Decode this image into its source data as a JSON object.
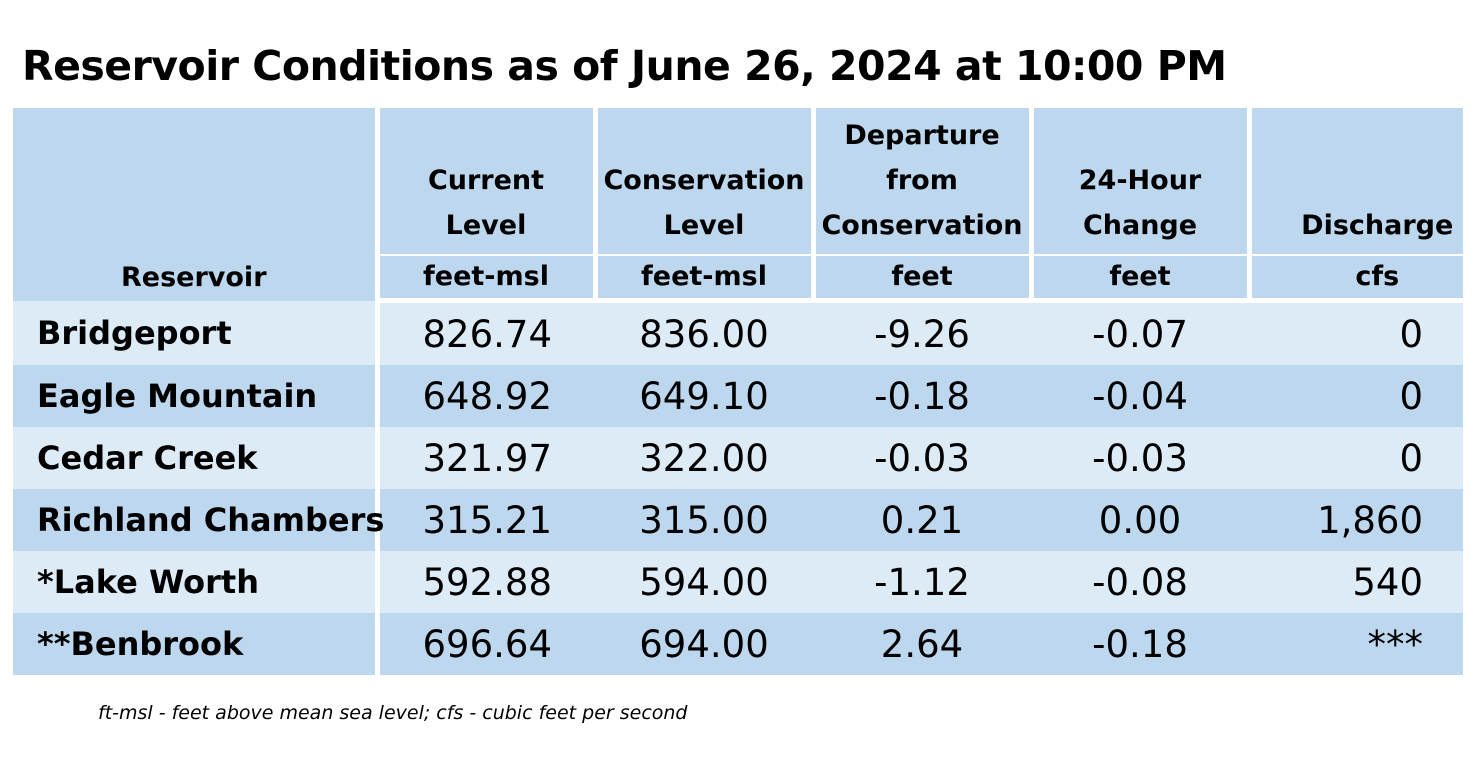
{
  "title": "Reservoir Conditions as of June 26, 2024 at 10:00 PM",
  "table": {
    "headers": {
      "reservoir": "Reservoir",
      "current_level": [
        "Current",
        "Level"
      ],
      "conservation_level": [
        "Conservation",
        "Level"
      ],
      "departure": [
        "Departure",
        "from",
        "Conservation"
      ],
      "change": [
        "24-Hour",
        "Change"
      ],
      "discharge": "Discharge"
    },
    "units": {
      "current_level": "feet-msl",
      "conservation_level": "feet-msl",
      "departure": "feet",
      "change": "feet",
      "discharge": "cfs"
    },
    "rows": [
      {
        "reservoir": "Bridgeport",
        "current": "826.74",
        "conservation": "836.00",
        "departure": "-9.26",
        "change": "-0.07",
        "discharge": "0"
      },
      {
        "reservoir": "Eagle Mountain",
        "current": "648.92",
        "conservation": "649.10",
        "departure": "-0.18",
        "change": "-0.04",
        "discharge": "0"
      },
      {
        "reservoir": "Cedar Creek",
        "current": "321.97",
        "conservation": "322.00",
        "departure": "-0.03",
        "change": "-0.03",
        "discharge": "0"
      },
      {
        "reservoir": "Richland Chambers",
        "current": "315.21",
        "conservation": "315.00",
        "departure": "0.21",
        "change": "0.00",
        "discharge": "1,860"
      },
      {
        "reservoir": "*Lake Worth",
        "current": "592.88",
        "conservation": "594.00",
        "departure": "-1.12",
        "change": "-0.08",
        "discharge": "540"
      },
      {
        "reservoir": "**Benbrook",
        "current": "696.64",
        "conservation": "694.00",
        "departure": "2.64",
        "change": "-0.18",
        "discharge": "***"
      }
    ]
  },
  "footnote": "ft-msl - feet above mean sea level; cfs - cubic feet per second",
  "colors": {
    "header_bg": "#bdd7ee",
    "row_light": "#ddebf7",
    "row_dark": "#bdd7ee"
  }
}
